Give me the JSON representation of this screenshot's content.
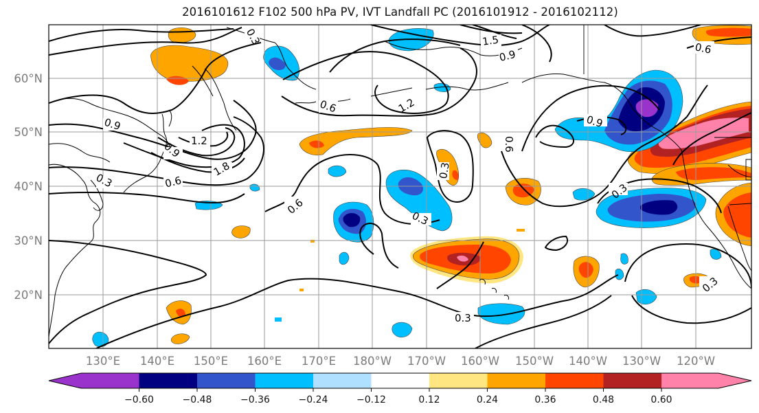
{
  "title": "2016101612 F102 500 hPa PV, IVT Landfall PC (2016101912 - 2016102112)",
  "map": {
    "lon_labels": [
      "130°E",
      "140°E",
      "150°E",
      "160°E",
      "170°E",
      "180°W",
      "170°W",
      "160°W",
      "150°W",
      "140°W",
      "130°W",
      "120°W"
    ],
    "lat_labels": [
      "60°N",
      "50°N",
      "40°N",
      "30°N",
      "20°N"
    ],
    "contour_labels": [
      "0.3",
      "0.6",
      "0.9",
      "1.2",
      "1.5",
      "1.8",
      "0.3",
      "0.6",
      "0.9",
      "1.2",
      "0.6",
      "0.3",
      "0.3",
      "0.9",
      "0.3",
      "0.9",
      "0.6",
      "0.3",
      "0.3",
      "0.6"
    ],
    "land_color": "#000000",
    "grid": true
  },
  "colorbar": {
    "ticks": [
      "−0.60",
      "−0.48",
      "−0.36",
      "−0.24",
      "−0.12",
      "0.12",
      "0.24",
      "0.36",
      "0.48",
      "0.60"
    ],
    "colors": [
      "#9933cc",
      "#000080",
      "#3355cc",
      "#00bfff",
      "#b0e0ff",
      "#ffffff",
      "#ffe680",
      "#ffa500",
      "#ff4500",
      "#b22222",
      "#ff82ab"
    ]
  }
}
